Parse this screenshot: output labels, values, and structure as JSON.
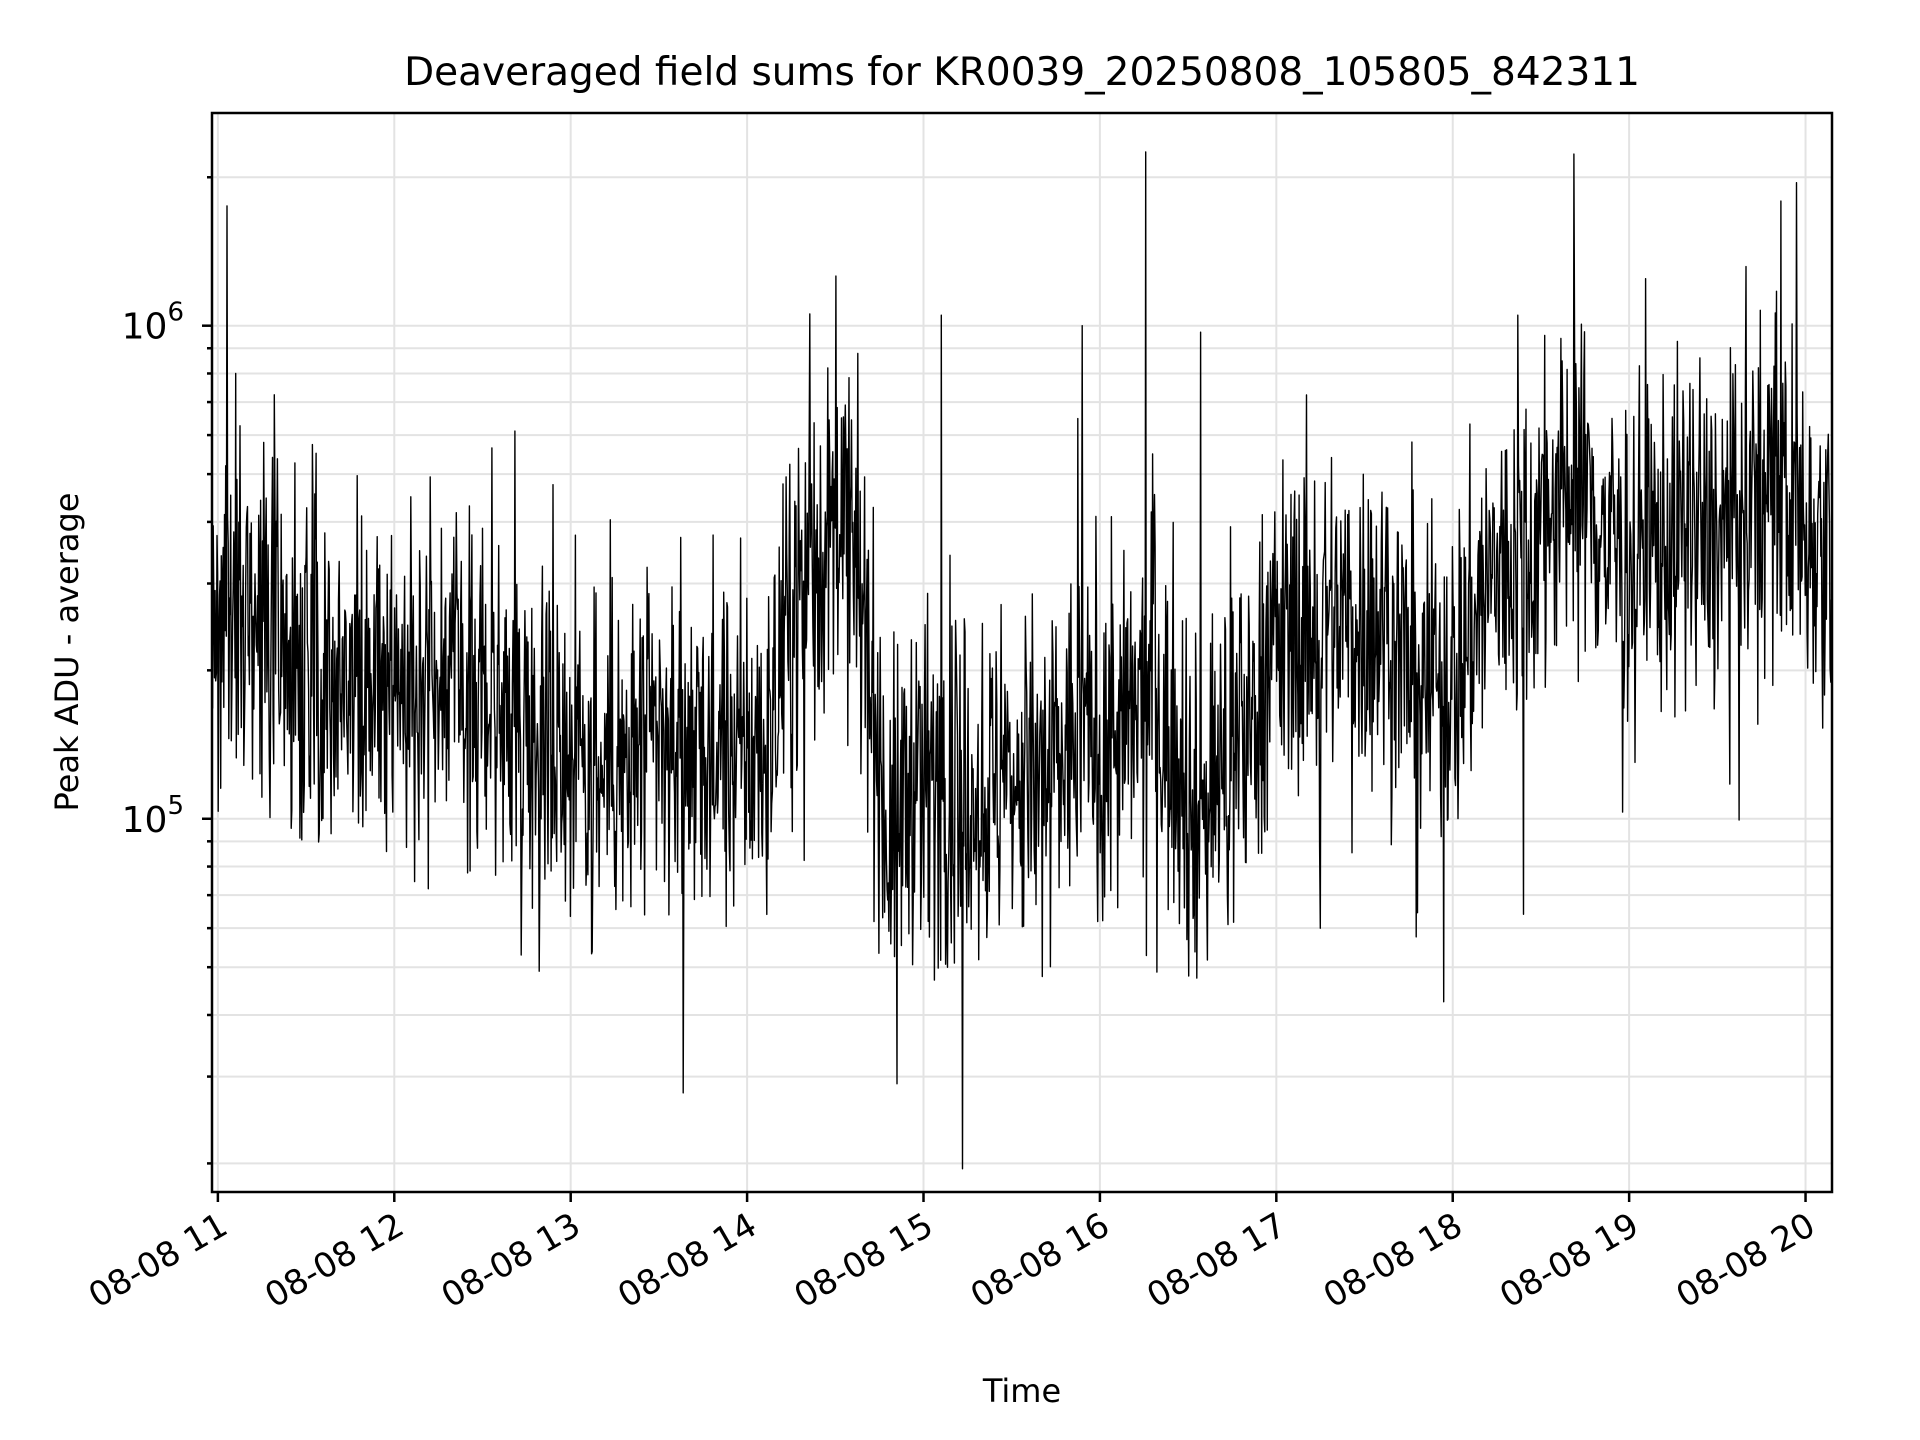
{
  "chart_data": {
    "type": "line",
    "title": "Deaveraged field sums for KR0039_20250808_105805_842311",
    "xlabel": "Time",
    "ylabel": "Peak ADU - average",
    "yscale": "log",
    "grid": true,
    "xlim": [
      "2025-08-08 10:58",
      "2025-08-08 20:09"
    ],
    "ylim": [
      17500,
      2700000
    ],
    "x_ticks": [
      {
        "label": "08-08 11",
        "hour": 11
      },
      {
        "label": "08-08 12",
        "hour": 12
      },
      {
        "label": "08-08 13",
        "hour": 13
      },
      {
        "label": "08-08 14",
        "hour": 14
      },
      {
        "label": "08-08 15",
        "hour": 15
      },
      {
        "label": "08-08 16",
        "hour": 16
      },
      {
        "label": "08-08 17",
        "hour": 17
      },
      {
        "label": "08-08 18",
        "hour": 18
      },
      {
        "label": "08-08 19",
        "hour": 19
      },
      {
        "label": "08-08 20",
        "hour": 20
      }
    ],
    "y_ticks": [
      {
        "base": "10",
        "exp": "5",
        "value": 100000
      },
      {
        "base": "10",
        "exp": "6",
        "value": 1000000
      }
    ],
    "series": [
      {
        "color": "#000000",
        "x_hours": [
          11.0,
          11.05,
          11.2,
          11.5,
          11.8,
          12.0,
          12.3,
          12.5,
          12.8,
          13.0,
          13.3,
          13.5,
          13.8,
          14.1,
          14.3,
          14.55,
          14.7,
          14.8,
          14.95,
          15.2,
          15.5,
          15.7,
          15.9,
          16.1,
          16.3,
          16.55,
          16.75,
          17.0,
          17.3,
          17.6,
          17.8,
          18.0,
          18.2,
          18.5,
          18.7,
          18.9,
          19.1,
          19.3,
          19.5,
          19.7,
          19.85,
          20.0,
          20.1
        ],
        "values": [
          250000,
          320000,
          230000,
          210000,
          200000,
          190000,
          210000,
          180000,
          150000,
          140000,
          125000,
          140000,
          130000,
          140000,
          300000,
          400000,
          200000,
          90000,
          125000,
          110000,
          120000,
          120000,
          150000,
          140000,
          180000,
          95000,
          130000,
          230000,
          260000,
          250000,
          190000,
          190000,
          300000,
          380000,
          490000,
          360000,
          350000,
          380000,
          360000,
          420000,
          500000,
          380000,
          400000
        ],
        "spikes": [
          {
            "hour": 11.05,
            "value": 1750000
          },
          {
            "hour": 11.1,
            "value": 800000
          },
          {
            "hour": 14.85,
            "value": 29000
          },
          {
            "hour": 15.22,
            "value": 19500
          },
          {
            "hour": 15.1,
            "value": 1050000
          },
          {
            "hour": 15.9,
            "value": 1000000
          },
          {
            "hour": 16.26,
            "value": 2250000
          },
          {
            "hour": 16.57,
            "value": 970000
          },
          {
            "hour": 17.25,
            "value": 60000
          },
          {
            "hour": 18.4,
            "value": 64000
          },
          {
            "hour": 19.95,
            "value": 1950000
          }
        ]
      }
    ]
  }
}
